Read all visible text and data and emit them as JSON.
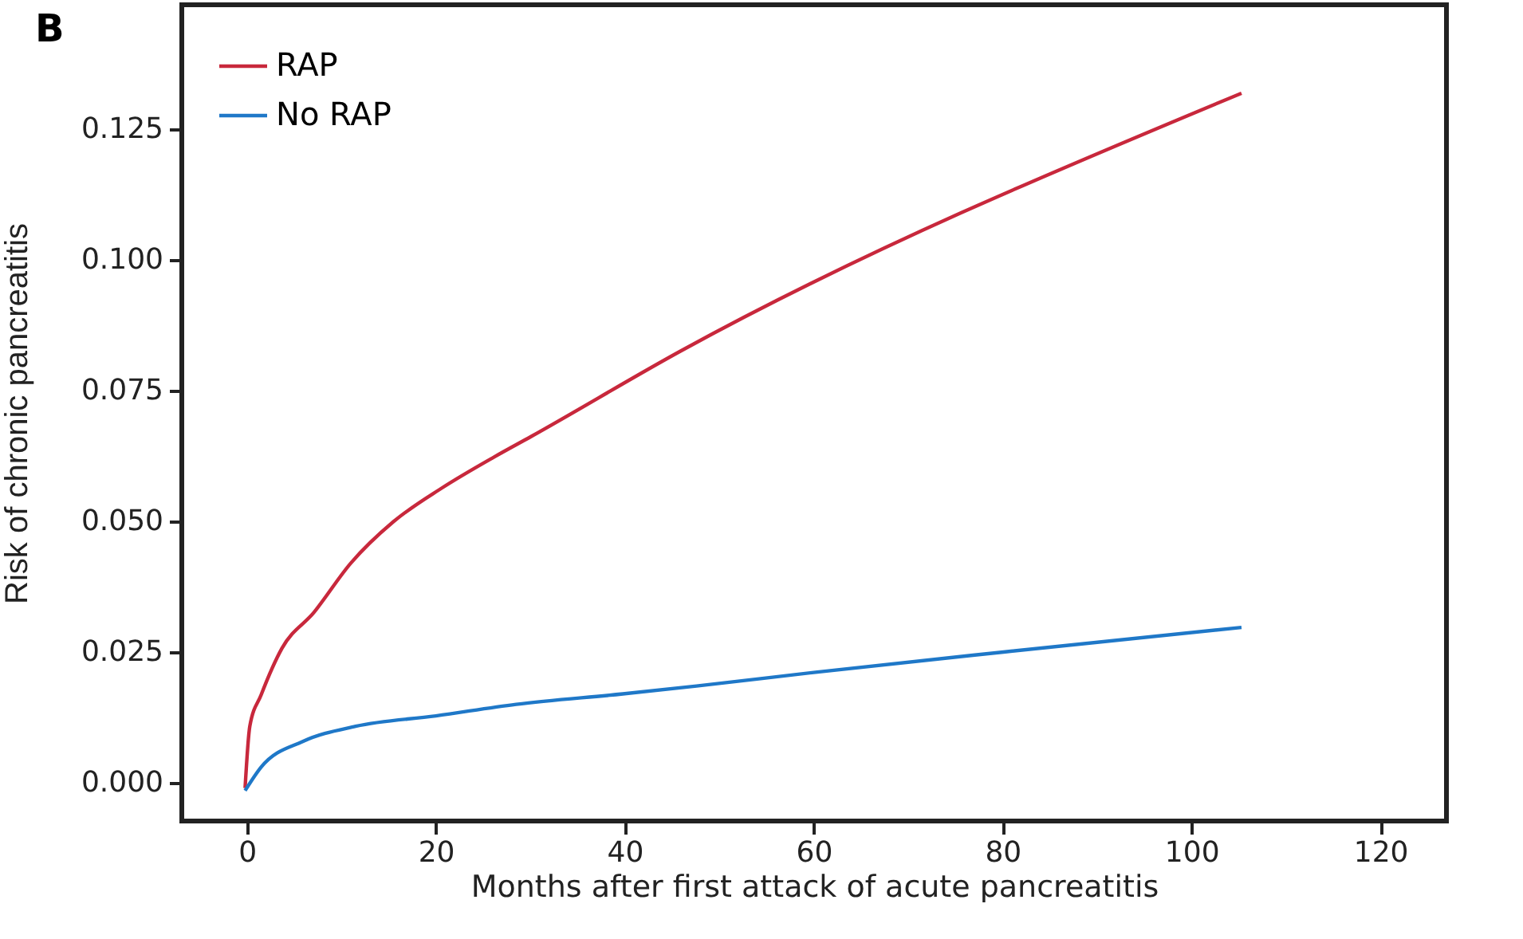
{
  "chart_data": {
    "type": "line",
    "xlabel": "Months after first attack of acute pancreatitis",
    "ylabel": "Risk of chronic pancreatitis",
    "annotations": [
      "B"
    ],
    "xlim": [
      -6.9,
      127
    ],
    "xticks": [
      0,
      20,
      40,
      60,
      80,
      100,
      120
    ],
    "ylim": [
      -0.0073,
      0.1487
    ],
    "yticks": [
      {
        "value": 0,
        "label": "0.000"
      },
      {
        "value": 0.025,
        "label": "0.025"
      },
      {
        "value": 0.05,
        "label": "0.050"
      },
      {
        "value": 0.075,
        "label": "0.075"
      },
      {
        "value": 0.1,
        "label": "0.100"
      },
      {
        "value": 0.125,
        "label": "0.125"
      }
    ],
    "grid": false,
    "legend": "top left",
    "marker": "none",
    "line_style": "solid",
    "series": [
      {
        "name": "RAP",
        "color": "#c8283c",
        "x": [
          -0.2,
          0.3,
          1.5,
          3.7,
          7.1,
          11,
          15.5,
          20.6,
          26.2,
          30.1,
          45.9,
          105.3
        ],
        "values": [
          -0.001,
          0.0108,
          0.0168,
          0.0257,
          0.0326,
          0.042,
          0.0499,
          0.0563,
          0.0623,
          0.0662,
          0.0825,
          0.1318
        ]
      },
      {
        "name": "No RAP",
        "color": "#1f78c8",
        "x": [
          -0.2,
          1.5,
          5.9,
          11.5,
          20,
          28.5,
          39.8,
          47.6,
          60,
          80.1,
          105.3
        ],
        "values": [
          -0.0015,
          0.003,
          0.0079,
          0.0108,
          0.0128,
          0.015,
          0.017,
          0.0185,
          0.0211,
          0.025,
          0.0297
        ]
      }
    ]
  }
}
